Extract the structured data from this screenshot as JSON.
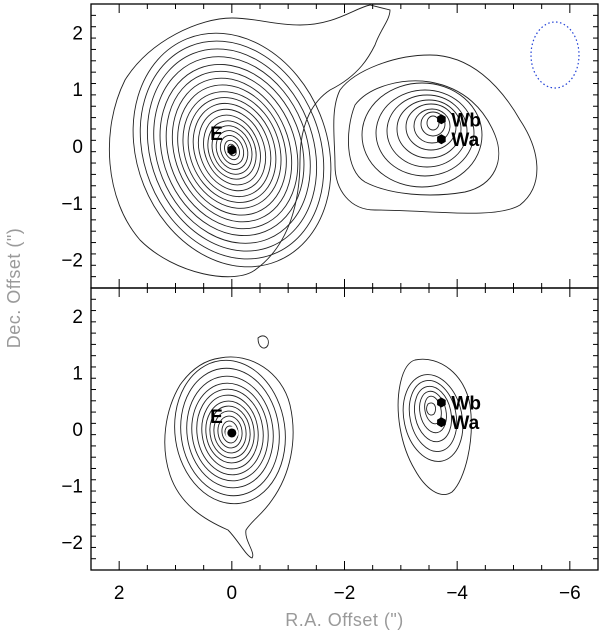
{
  "chart_data": {
    "type": "contour",
    "xlabel": "R.A. Offset (\")",
    "ylabel": "Dec. Offset (\")",
    "xlim": [
      2.5,
      -6.5
    ],
    "ylim": [
      -2.5,
      2.5
    ],
    "x_ticks": [
      2,
      0,
      -2,
      -4,
      -6
    ],
    "x_tick_labels": [
      "2",
      "0",
      "−2",
      "−4",
      "−6"
    ],
    "y_ticks": [
      2,
      1,
      0,
      -1,
      -2
    ],
    "y_tick_labels": [
      "2",
      "1",
      "0",
      "−1",
      "−2"
    ],
    "panels": [
      {
        "sources": [
          {
            "label": "E",
            "x": 0.0,
            "y": -0.07,
            "marker": "hexagon"
          },
          {
            "label": "Wb",
            "x": -3.72,
            "y": 0.47,
            "marker": "hexagon"
          },
          {
            "label": "Wa",
            "x": -3.72,
            "y": 0.12,
            "marker": "hexagon"
          }
        ],
        "beam": {
          "x": -5.6,
          "y": 1.55,
          "major": 1.15,
          "minor": 0.85,
          "color": "#1f3fd6",
          "style": "dotted"
        }
      },
      {
        "sources": [
          {
            "label": "E",
            "x": 0.0,
            "y": -0.07,
            "marker": "circle"
          },
          {
            "label": "Wb",
            "x": -3.72,
            "y": 0.47,
            "marker": "hexagon"
          },
          {
            "label": "Wa",
            "x": -3.72,
            "y": 0.12,
            "marker": "hexagon"
          }
        ]
      }
    ]
  }
}
